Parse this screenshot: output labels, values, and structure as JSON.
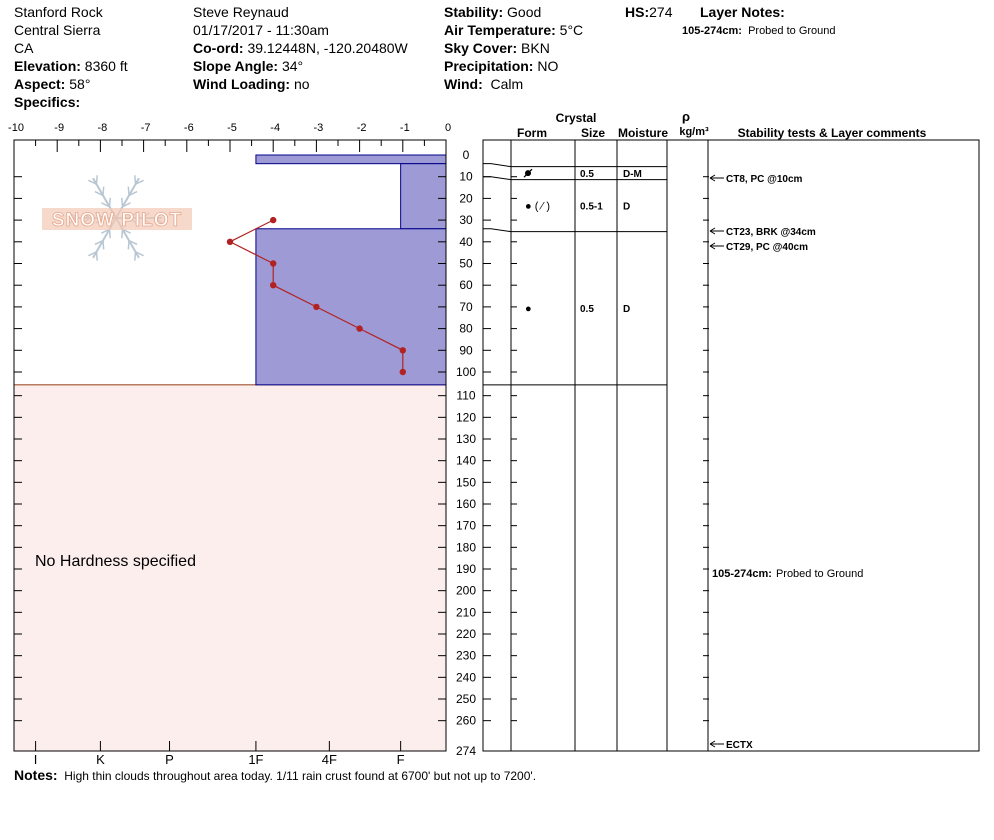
{
  "header": {
    "location": "Stanford Rock",
    "range": "Central Sierra",
    "state": "CA",
    "elevation_label": "Elevation:",
    "elevation_value": "8360 ft",
    "aspect_label": "Aspect:",
    "aspect_value": "58°",
    "specifics_label": "Specifics:",
    "observer": "Steve Reynaud",
    "datetime": "01/17/2017 - 11:30am",
    "coord_label": "Co-ord:",
    "coord_value": "39.12448N, -120.20480W",
    "slope_label": "Slope Angle:",
    "slope_value": "34°",
    "wind_loading_label": "Wind Loading:",
    "wind_loading_value": "no",
    "stability_label": "Stability:",
    "stability_value": "Good",
    "air_temp_label": "Air Temperature:",
    "air_temp_value": "5°C",
    "sky_label": "Sky Cover:",
    "sky_value": "BKN",
    "precip_label": "Precipitation:",
    "precip_value": "NO",
    "wind_label": "Wind:",
    "wind_value": "Calm",
    "hs_label": "HS:",
    "hs_value": "274",
    "layer_notes_label": "Layer Notes:",
    "layer_note_range": "105-274cm:",
    "layer_note_text": "Probed to Ground"
  },
  "logo": {
    "text": "SNOW PILOT",
    "icon": "snowflake-icon"
  },
  "columns": {
    "crystal": "Crystal",
    "form": "Form",
    "size": "Size",
    "moisture": "Moisture",
    "rho": "ρ",
    "density_unit": "kg/m³",
    "stability": "Stability tests & Layer comments"
  },
  "notes_label": "Notes:",
  "notes_text": "High thin clouds throughout area today.  1/11 rain crust found at 6700' but not up to 7200'.",
  "chart_data": {
    "type": "snow-profile",
    "hs": 274,
    "temperature_axis": {
      "ticks": [
        "-10",
        "-9",
        "-8",
        "-7",
        "-6",
        "-5",
        "-4",
        "-3",
        "-2",
        "-1",
        "0"
      ],
      "range": [
        -10,
        0
      ]
    },
    "depth_axis": {
      "ticks": [
        "0",
        "10",
        "20",
        "30",
        "40",
        "50",
        "60",
        "70",
        "80",
        "90",
        "100",
        "110",
        "120",
        "130",
        "140",
        "150",
        "160",
        "170",
        "180",
        "190",
        "200",
        "210",
        "220",
        "230",
        "240",
        "250",
        "260",
        "274"
      ],
      "range": [
        0,
        274
      ]
    },
    "hardness_axis": {
      "ticks": [
        "I",
        "K",
        "P",
        "1F",
        "4F",
        "F"
      ],
      "values": [
        -9.5,
        -8,
        -6.4,
        -4.4,
        -2.7,
        -1.05
      ]
    },
    "hardness_profile": [
      {
        "top": 0,
        "bottom": 4,
        "hardness": -4.4
      },
      {
        "top": 4,
        "bottom": 34,
        "hardness": -1.05
      },
      {
        "top": 34,
        "bottom": 105,
        "hardness": -4.4
      }
    ],
    "temperature_profile": [
      {
        "depth": 30,
        "temp": -4
      },
      {
        "depth": 40,
        "temp": -5
      },
      {
        "depth": 50,
        "temp": -4
      },
      {
        "depth": 60,
        "temp": -4
      },
      {
        "depth": 70,
        "temp": -3
      },
      {
        "depth": 80,
        "temp": -2
      },
      {
        "depth": 90,
        "temp": -1
      },
      {
        "depth": 100,
        "temp": -1
      }
    ],
    "no_hardness_label": "No Hardness specified",
    "layers": [
      {
        "top": 4,
        "bottom": 10,
        "form": "decomposing",
        "size": "0.5",
        "moisture": "D-M"
      },
      {
        "top": 10,
        "bottom": 34,
        "form": "round (facet)",
        "form_text": "●  ( ⁄ )",
        "size": "0.5-1",
        "moisture": "D"
      },
      {
        "top": 34,
        "bottom": 105,
        "form": "round",
        "form_text": "●",
        "size": "0.5",
        "moisture": "D"
      }
    ],
    "stability_tests": [
      {
        "depth": 10,
        "text": "CT8, PC @10cm"
      },
      {
        "depth": 34,
        "text": "CT23, BRK @34cm"
      },
      {
        "depth": 40,
        "text": "CT29, PC @40cm"
      },
      {
        "depth": 274,
        "text": "ECTX"
      }
    ],
    "layer_comments": [
      {
        "depth": 190,
        "range": "105-274cm:",
        "text": "Probed to Ground"
      }
    ]
  }
}
